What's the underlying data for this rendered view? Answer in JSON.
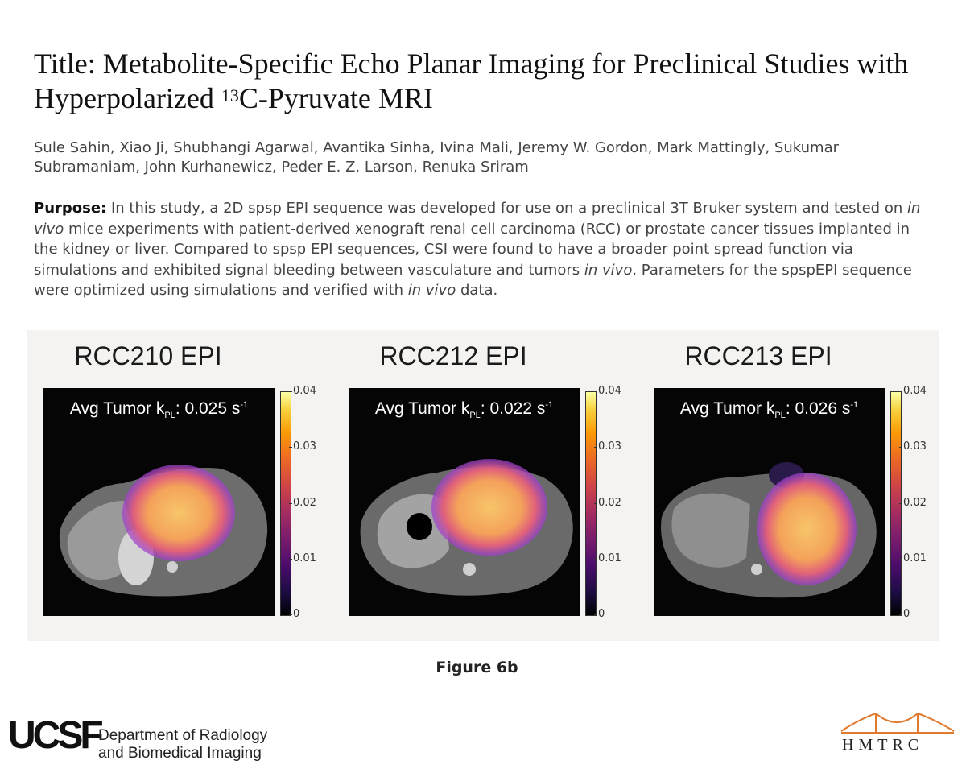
{
  "title": {
    "prefix": "Title: Metabolite-Specific Echo Planar Imaging for Preclinical Studies with Hyperpolarized ",
    "superscript": "13",
    "suffix": "C-Pyruvate MRI"
  },
  "authors": "Sule Sahin, Xiao Ji, Shubhangi Agarwal, Avantika Sinha, Ivina Mali, Jeremy W. Gordon, Mark Mattingly, Sukumar Subramaniam, John Kurhanewicz, Peder E. Z. Larson, Renuka Sriram",
  "abstract": {
    "label": "Purpose:",
    "t1": " In this study, a 2D spsp EPI sequence was developed for use on a preclinical 3T Bruker system and tested on ",
    "i1": "in vivo",
    "t2": " mice experiments with patient-derived xenograft renal cell carcinoma (RCC) or prostate cancer tissues implanted in the kidney or liver. Compared to spsp EPI sequences, CSI were found to have a broader point spread function via simulations and exhibited signal bleeding between vasculature and tumors ",
    "i2": "in vivo",
    "t3": ". Parameters for the spspEPI sequence were optimized using simulations and verified with ",
    "i3": "in vivo",
    "t4": " data."
  },
  "figure": {
    "panels": [
      {
        "title": "RCC210 EPI",
        "kpl_prefix": "Avg Tumor k",
        "kpl_sub": "PL",
        "kpl_value": ": 0.025 s",
        "kpl_sup": "-1"
      },
      {
        "title": "RCC212 EPI",
        "kpl_prefix": "Avg Tumor k",
        "kpl_sub": "PL",
        "kpl_value": ": 0.022 s",
        "kpl_sup": "-1"
      },
      {
        "title": "RCC213 EPI",
        "kpl_prefix": "Avg Tumor k",
        "kpl_sub": "PL",
        "kpl_value": ": 0.026 s",
        "kpl_sup": "-1"
      }
    ],
    "colorbar_ticks": [
      "0.04",
      "0.03",
      "0.02",
      "0.01",
      "0"
    ],
    "colormap": [
      "#000000",
      "#4a0c6b",
      "#a52c60",
      "#ed6925",
      "#fcffa4"
    ],
    "caption": "Figure 6b"
  },
  "footer": {
    "logo": "UCSF",
    "dept_line1": "Department of Radiology",
    "dept_line2": "and Biomedical Imaging",
    "partner_logo": "HMTRC"
  }
}
